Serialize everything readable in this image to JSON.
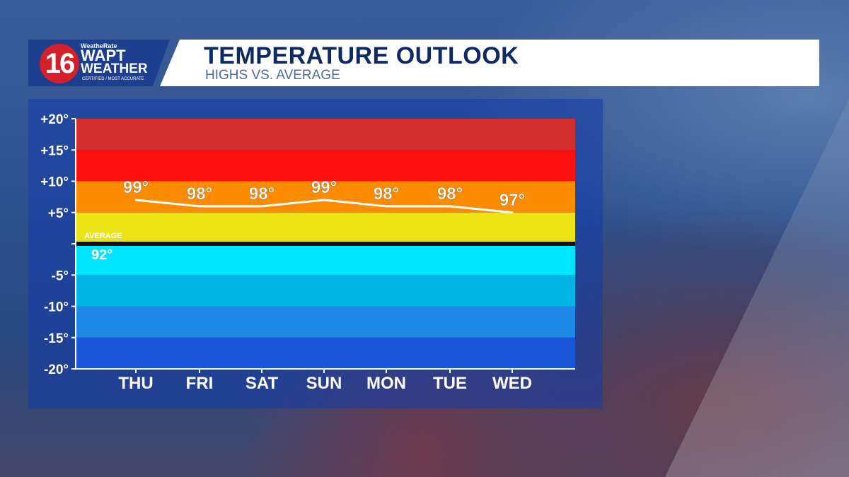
{
  "branding": {
    "logo_number": "16",
    "logo_top": "WeatheRate",
    "logo_station": "WAPT",
    "logo_weather": "WEATHER",
    "logo_tagline": "CERTIFIED / MOST ACCURATE"
  },
  "header": {
    "title": "TEMPERATURE OUTLOOK",
    "subtitle": "HIGHS VS. AVERAGE"
  },
  "chart_data": {
    "type": "line",
    "title": "TEMPERATURE OUTLOOK",
    "subtitle": "HIGHS VS. AVERAGE",
    "categories": [
      "THU",
      "FRI",
      "SAT",
      "SUN",
      "MON",
      "TUE",
      "WED"
    ],
    "values": [
      7,
      6,
      6,
      7,
      6,
      6,
      5
    ],
    "data_labels": [
      "99°",
      "98°",
      "98°",
      "99°",
      "98°",
      "98°",
      "97°"
    ],
    "average_label": "AVERAGE",
    "average_value_label": "92°",
    "ylim": [
      -20,
      20
    ],
    "yticks": [
      20,
      15,
      10,
      5,
      0,
      -5,
      -10,
      -15,
      -20
    ],
    "ytick_labels": [
      "+20°",
      "+15°",
      "+10°",
      "+5°",
      "",
      "-5°",
      "-10°",
      "-15°",
      "-20°"
    ],
    "bands": [
      {
        "from": 15,
        "to": 20,
        "color": "#d32f2f"
      },
      {
        "from": 10,
        "to": 15,
        "color": "#fc0f0f"
      },
      {
        "from": 5,
        "to": 10,
        "color": "#fb8c00"
      },
      {
        "from": 0,
        "to": 5,
        "color": "#ebe315"
      },
      {
        "from": -5,
        "to": 0,
        "color": "#00e5ff"
      },
      {
        "from": -10,
        "to": -5,
        "color": "#00b5e6"
      },
      {
        "from": -15,
        "to": -10,
        "color": "#1e88e5"
      },
      {
        "from": -20,
        "to": -15,
        "color": "#1a56d8"
      }
    ],
    "line_color": "#ffffff",
    "legend": "none",
    "grid": false
  }
}
